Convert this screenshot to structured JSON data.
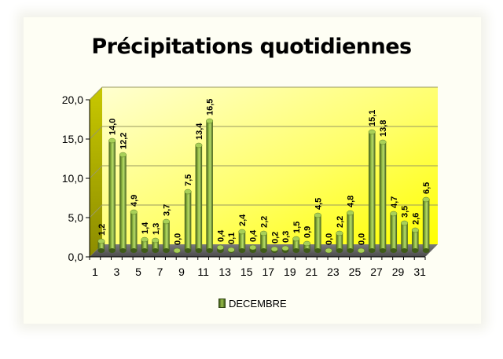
{
  "chart_data": {
    "type": "bar",
    "title": "Précipitations quotidiennes",
    "xlabel": "",
    "ylabel": "",
    "ylim": [
      0,
      20
    ],
    "y_ticks": [
      "0,0",
      "5,0",
      "10,0",
      "15,0",
      "20,0"
    ],
    "x_tick_labels": [
      "1",
      "3",
      "5",
      "7",
      "9",
      "11",
      "13",
      "15",
      "17",
      "19",
      "21",
      "23",
      "25",
      "27",
      "29",
      "31"
    ],
    "categories": [
      "1",
      "2",
      "3",
      "4",
      "5",
      "6",
      "7",
      "8",
      "9",
      "10",
      "11",
      "12",
      "13",
      "14",
      "15",
      "16",
      "17",
      "18",
      "19",
      "20",
      "21",
      "22",
      "23",
      "24",
      "25",
      "26",
      "27",
      "28",
      "29",
      "30",
      "31"
    ],
    "series": [
      {
        "name": "DECEMBRE",
        "values": [
          1.2,
          14.0,
          12.2,
          4.9,
          1.4,
          1.3,
          3.7,
          0.0,
          7.5,
          13.4,
          16.5,
          0.4,
          0.1,
          2.4,
          0.4,
          2.2,
          0.2,
          0.3,
          1.5,
          0.9,
          4.5,
          0.0,
          2.2,
          4.8,
          0.0,
          15.1,
          13.8,
          4.7,
          3.5,
          2.6,
          6.5
        ],
        "value_labels": [
          "1,2",
          "14,0",
          "12,2",
          "4,9",
          "1,4",
          "1,3",
          "3,7",
          "0,0",
          "7,5",
          "13,4",
          "16,5",
          "0,4",
          "0,1",
          "2,4",
          "0,4",
          "2,2",
          "0,2",
          "0,3",
          "1,5",
          "0,9",
          "4,5",
          "0,0",
          "2,2",
          "4,8",
          "0,0",
          "15,1",
          "13,8",
          "4,7",
          "3,5",
          "2,6",
          "6,5"
        ]
      }
    ],
    "grid": true,
    "legend": "bottom",
    "colors": {
      "bar": "#7fa534",
      "bar_dark": "#3e5a18",
      "bar_light": "#b8dc6a",
      "wall": "#ffff00",
      "wall_light": "#ffffc8"
    }
  }
}
